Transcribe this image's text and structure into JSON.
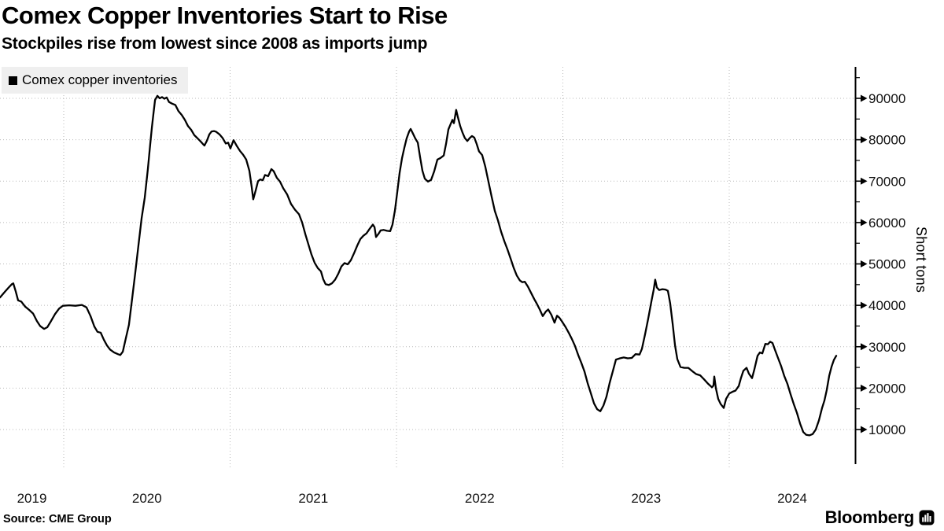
{
  "header": {
    "title": "Comex Copper Inventories Start to Rise",
    "subtitle": "Stockpiles rise from lowest since 2008 as imports jump"
  },
  "legend": {
    "label": "Comex copper inventories"
  },
  "footer": {
    "source": "Source: CME Group",
    "brand": "Bloomberg"
  },
  "colors": {
    "line": "#000000",
    "grid": "#b9b9b9",
    "legend_bg": "#efefef",
    "text": "#000000"
  },
  "chart_data": {
    "type": "line",
    "title": "Comex Copper Inventories Start to Rise",
    "subtitle": "Stockpiles rise from lowest since 2008 as imports jump",
    "xlabel": "",
    "ylabel": "Short tons",
    "unit": "short tons",
    "grid": true,
    "legend_position": "top-left",
    "x_axis": {
      "tick_labels": [
        "2019",
        "2020",
        "2021",
        "2022",
        "2023",
        "2024"
      ],
      "gridline_years": [
        2019.5,
        2020.5,
        2021.5,
        2022.5,
        2023.5
      ],
      "xlim": [
        2019.117,
        2024.26
      ]
    },
    "y_axis": {
      "tick_values": [
        10000,
        20000,
        30000,
        40000,
        50000,
        60000,
        70000,
        80000,
        90000
      ],
      "minor_tick_step": 5000,
      "ylim": [
        1500,
        97500
      ],
      "side": "right"
    },
    "series": [
      {
        "name": "Comex copper inventories",
        "points": [
          [
            2019.117,
            41900
          ],
          [
            2019.145,
            43200
          ],
          [
            2019.169,
            44300
          ],
          [
            2019.188,
            45100
          ],
          [
            2019.197,
            45300
          ],
          [
            2019.212,
            43300
          ],
          [
            2019.226,
            41200
          ],
          [
            2019.245,
            40900
          ],
          [
            2019.268,
            39700
          ],
          [
            2019.292,
            38900
          ],
          [
            2019.316,
            38000
          ],
          [
            2019.339,
            36200
          ],
          [
            2019.358,
            35000
          ],
          [
            2019.382,
            34300
          ],
          [
            2019.401,
            34700
          ],
          [
            2019.424,
            36200
          ],
          [
            2019.448,
            37900
          ],
          [
            2019.472,
            39200
          ],
          [
            2019.495,
            39900
          ],
          [
            2019.533,
            40000
          ],
          [
            2019.571,
            39900
          ],
          [
            2019.609,
            40100
          ],
          [
            2019.637,
            39500
          ],
          [
            2019.661,
            37400
          ],
          [
            2019.684,
            34900
          ],
          [
            2019.703,
            33600
          ],
          [
            2019.722,
            33400
          ],
          [
            2019.741,
            31700
          ],
          [
            2019.76,
            30300
          ],
          [
            2019.779,
            29300
          ],
          [
            2019.803,
            28600
          ],
          [
            2019.826,
            28200
          ],
          [
            2019.84,
            28000
          ],
          [
            2019.855,
            28800
          ],
          [
            2019.873,
            32000
          ],
          [
            2019.892,
            35300
          ],
          [
            2019.911,
            41500
          ],
          [
            2019.93,
            47800
          ],
          [
            2019.949,
            54500
          ],
          [
            2019.968,
            61000
          ],
          [
            2019.987,
            66000
          ],
          [
            2020.006,
            73000
          ],
          [
            2020.02,
            79000
          ],
          [
            2020.03,
            83000
          ],
          [
            2020.039,
            86200
          ],
          [
            2020.049,
            89600
          ],
          [
            2020.063,
            90600
          ],
          [
            2020.077,
            90000
          ],
          [
            2020.091,
            90300
          ],
          [
            2020.105,
            89900
          ],
          [
            2020.119,
            90200
          ],
          [
            2020.133,
            89100
          ],
          [
            2020.152,
            88700
          ],
          [
            2020.171,
            88400
          ],
          [
            2020.19,
            86900
          ],
          [
            2020.209,
            86000
          ],
          [
            2020.228,
            84800
          ],
          [
            2020.247,
            83300
          ],
          [
            2020.266,
            82400
          ],
          [
            2020.285,
            81100
          ],
          [
            2020.303,
            80400
          ],
          [
            2020.322,
            79600
          ],
          [
            2020.336,
            79000
          ],
          [
            2020.346,
            78600
          ],
          [
            2020.361,
            79800
          ],
          [
            2020.375,
            81300
          ],
          [
            2020.389,
            82000
          ],
          [
            2020.403,
            82100
          ],
          [
            2020.417,
            81900
          ],
          [
            2020.436,
            81300
          ],
          [
            2020.455,
            80400
          ],
          [
            2020.474,
            79100
          ],
          [
            2020.488,
            79300
          ],
          [
            2020.502,
            77900
          ],
          [
            2020.521,
            79900
          ],
          [
            2020.54,
            78500
          ],
          [
            2020.559,
            77300
          ],
          [
            2020.578,
            76400
          ],
          [
            2020.597,
            75200
          ],
          [
            2020.616,
            72500
          ],
          [
            2020.63,
            68500
          ],
          [
            2020.639,
            65600
          ],
          [
            2020.654,
            67800
          ],
          [
            2020.668,
            70000
          ],
          [
            2020.682,
            70400
          ],
          [
            2020.696,
            70200
          ],
          [
            2020.71,
            71500
          ],
          [
            2020.729,
            71200
          ],
          [
            2020.748,
            72900
          ],
          [
            2020.762,
            72400
          ],
          [
            2020.781,
            70800
          ],
          [
            2020.8,
            69900
          ],
          [
            2020.819,
            68300
          ],
          [
            2020.843,
            66800
          ],
          [
            2020.866,
            64500
          ],
          [
            2020.89,
            63100
          ],
          [
            2020.914,
            62000
          ],
          [
            2020.933,
            60000
          ],
          [
            2020.952,
            57200
          ],
          [
            2020.97,
            54800
          ],
          [
            2020.989,
            52300
          ],
          [
            2021.008,
            50300
          ],
          [
            2021.027,
            49000
          ],
          [
            2021.046,
            48200
          ],
          [
            2021.06,
            46300
          ],
          [
            2021.074,
            45100
          ],
          [
            2021.093,
            44900
          ],
          [
            2021.112,
            45300
          ],
          [
            2021.131,
            46200
          ],
          [
            2021.15,
            47600
          ],
          [
            2021.169,
            49400
          ],
          [
            2021.188,
            50200
          ],
          [
            2021.207,
            49900
          ],
          [
            2021.226,
            50900
          ],
          [
            2021.245,
            52600
          ],
          [
            2021.264,
            54400
          ],
          [
            2021.283,
            56000
          ],
          [
            2021.301,
            56800
          ],
          [
            2021.32,
            57400
          ],
          [
            2021.339,
            58500
          ],
          [
            2021.358,
            59500
          ],
          [
            2021.368,
            58900
          ],
          [
            2021.377,
            56500
          ],
          [
            2021.391,
            57200
          ],
          [
            2021.405,
            58100
          ],
          [
            2021.424,
            58200
          ],
          [
            2021.443,
            58000
          ],
          [
            2021.462,
            57900
          ],
          [
            2021.476,
            59500
          ],
          [
            2021.491,
            63000
          ],
          [
            2021.505,
            67500
          ],
          [
            2021.519,
            72000
          ],
          [
            2021.533,
            75500
          ],
          [
            2021.547,
            78000
          ],
          [
            2021.561,
            80300
          ],
          [
            2021.576,
            82000
          ],
          [
            2021.585,
            82600
          ],
          [
            2021.599,
            81500
          ],
          [
            2021.613,
            80300
          ],
          [
            2021.628,
            79300
          ],
          [
            2021.642,
            75800
          ],
          [
            2021.656,
            72500
          ],
          [
            2021.67,
            70600
          ],
          [
            2021.689,
            69900
          ],
          [
            2021.708,
            70300
          ],
          [
            2021.727,
            72400
          ],
          [
            2021.746,
            75200
          ],
          [
            2021.765,
            75600
          ],
          [
            2021.784,
            76200
          ],
          [
            2021.798,
            79000
          ],
          [
            2021.812,
            82500
          ],
          [
            2021.826,
            83800
          ],
          [
            2021.836,
            84800
          ],
          [
            2021.845,
            84000
          ],
          [
            2021.859,
            87200
          ],
          [
            2021.869,
            85500
          ],
          [
            2021.883,
            83300
          ],
          [
            2021.897,
            81700
          ],
          [
            2021.911,
            80400
          ],
          [
            2021.926,
            79700
          ],
          [
            2021.94,
            80400
          ],
          [
            2021.954,
            80900
          ],
          [
            2021.968,
            80500
          ],
          [
            2021.982,
            79000
          ],
          [
            2021.996,
            77200
          ],
          [
            2022.015,
            76300
          ],
          [
            2022.034,
            73500
          ],
          [
            2022.053,
            69800
          ],
          [
            2022.072,
            66200
          ],
          [
            2022.091,
            62800
          ],
          [
            2022.11,
            60500
          ],
          [
            2022.129,
            57800
          ],
          [
            2022.148,
            55500
          ],
          [
            2022.167,
            53500
          ],
          [
            2022.186,
            51300
          ],
          [
            2022.204,
            49100
          ],
          [
            2022.223,
            47200
          ],
          [
            2022.242,
            46000
          ],
          [
            2022.256,
            45600
          ],
          [
            2022.271,
            45700
          ],
          [
            2022.29,
            44500
          ],
          [
            2022.309,
            43000
          ],
          [
            2022.328,
            41500
          ],
          [
            2022.342,
            40500
          ],
          [
            2022.361,
            39000
          ],
          [
            2022.379,
            37400
          ],
          [
            2022.398,
            38500
          ],
          [
            2022.412,
            39000
          ],
          [
            2022.431,
            37700
          ],
          [
            2022.45,
            35800
          ],
          [
            2022.465,
            37500
          ],
          [
            2022.479,
            37000
          ],
          [
            2022.498,
            35900
          ],
          [
            2022.517,
            34700
          ],
          [
            2022.535,
            33400
          ],
          [
            2022.554,
            31900
          ],
          [
            2022.573,
            30200
          ],
          [
            2022.592,
            28000
          ],
          [
            2022.611,
            26100
          ],
          [
            2022.63,
            24000
          ],
          [
            2022.649,
            21200
          ],
          [
            2022.668,
            18800
          ],
          [
            2022.687,
            16300
          ],
          [
            2022.706,
            14900
          ],
          [
            2022.725,
            14400
          ],
          [
            2022.744,
            15800
          ],
          [
            2022.762,
            17900
          ],
          [
            2022.781,
            21200
          ],
          [
            2022.8,
            24000
          ],
          [
            2022.819,
            26900
          ],
          [
            2022.843,
            27200
          ],
          [
            2022.866,
            27400
          ],
          [
            2022.89,
            27200
          ],
          [
            2022.914,
            27300
          ],
          [
            2022.937,
            28200
          ],
          [
            2022.961,
            28100
          ],
          [
            2022.975,
            29500
          ],
          [
            2022.994,
            33000
          ],
          [
            2023.013,
            36800
          ],
          [
            2023.032,
            40900
          ],
          [
            2023.046,
            43800
          ],
          [
            2023.055,
            46200
          ],
          [
            2023.065,
            44300
          ],
          [
            2023.079,
            43700
          ],
          [
            2023.098,
            43900
          ],
          [
            2023.117,
            43800
          ],
          [
            2023.131,
            43500
          ],
          [
            2023.145,
            40500
          ],
          [
            2023.16,
            35500
          ],
          [
            2023.174,
            30300
          ],
          [
            2023.188,
            27000
          ],
          [
            2023.207,
            25100
          ],
          [
            2023.23,
            24900
          ],
          [
            2023.254,
            24900
          ],
          [
            2023.278,
            24100
          ],
          [
            2023.301,
            23400
          ],
          [
            2023.325,
            23100
          ],
          [
            2023.349,
            22100
          ],
          [
            2023.372,
            21100
          ],
          [
            2023.396,
            20200
          ],
          [
            2023.405,
            20600
          ],
          [
            2023.41,
            22800
          ],
          [
            2023.42,
            19900
          ],
          [
            2023.434,
            17400
          ],
          [
            2023.448,
            16200
          ],
          [
            2023.467,
            15200
          ],
          [
            2023.481,
            17400
          ],
          [
            2023.5,
            18700
          ],
          [
            2023.519,
            19100
          ],
          [
            2023.538,
            19400
          ],
          [
            2023.557,
            20500
          ],
          [
            2023.571,
            22500
          ],
          [
            2023.585,
            24200
          ],
          [
            2023.604,
            24900
          ],
          [
            2023.618,
            23500
          ],
          [
            2023.637,
            22400
          ],
          [
            2023.651,
            24500
          ],
          [
            2023.67,
            27800
          ],
          [
            2023.684,
            28600
          ],
          [
            2023.699,
            28400
          ],
          [
            2023.717,
            30700
          ],
          [
            2023.732,
            30600
          ],
          [
            2023.746,
            31200
          ],
          [
            2023.76,
            30900
          ],
          [
            2023.774,
            29300
          ],
          [
            2023.793,
            27300
          ],
          [
            2023.812,
            25300
          ],
          [
            2023.831,
            22900
          ],
          [
            2023.85,
            21000
          ],
          [
            2023.869,
            18500
          ],
          [
            2023.888,
            16100
          ],
          [
            2023.907,
            14000
          ],
          [
            2023.926,
            11400
          ],
          [
            2023.945,
            9400
          ],
          [
            2023.963,
            8700
          ],
          [
            2023.982,
            8600
          ],
          [
            2024.001,
            8900
          ],
          [
            2024.02,
            10000
          ],
          [
            2024.039,
            12200
          ],
          [
            2024.058,
            15200
          ],
          [
            2024.072,
            17000
          ],
          [
            2024.086,
            19500
          ],
          [
            2024.101,
            23000
          ],
          [
            2024.115,
            25200
          ],
          [
            2024.129,
            26800
          ],
          [
            2024.143,
            27800
          ]
        ]
      }
    ]
  }
}
